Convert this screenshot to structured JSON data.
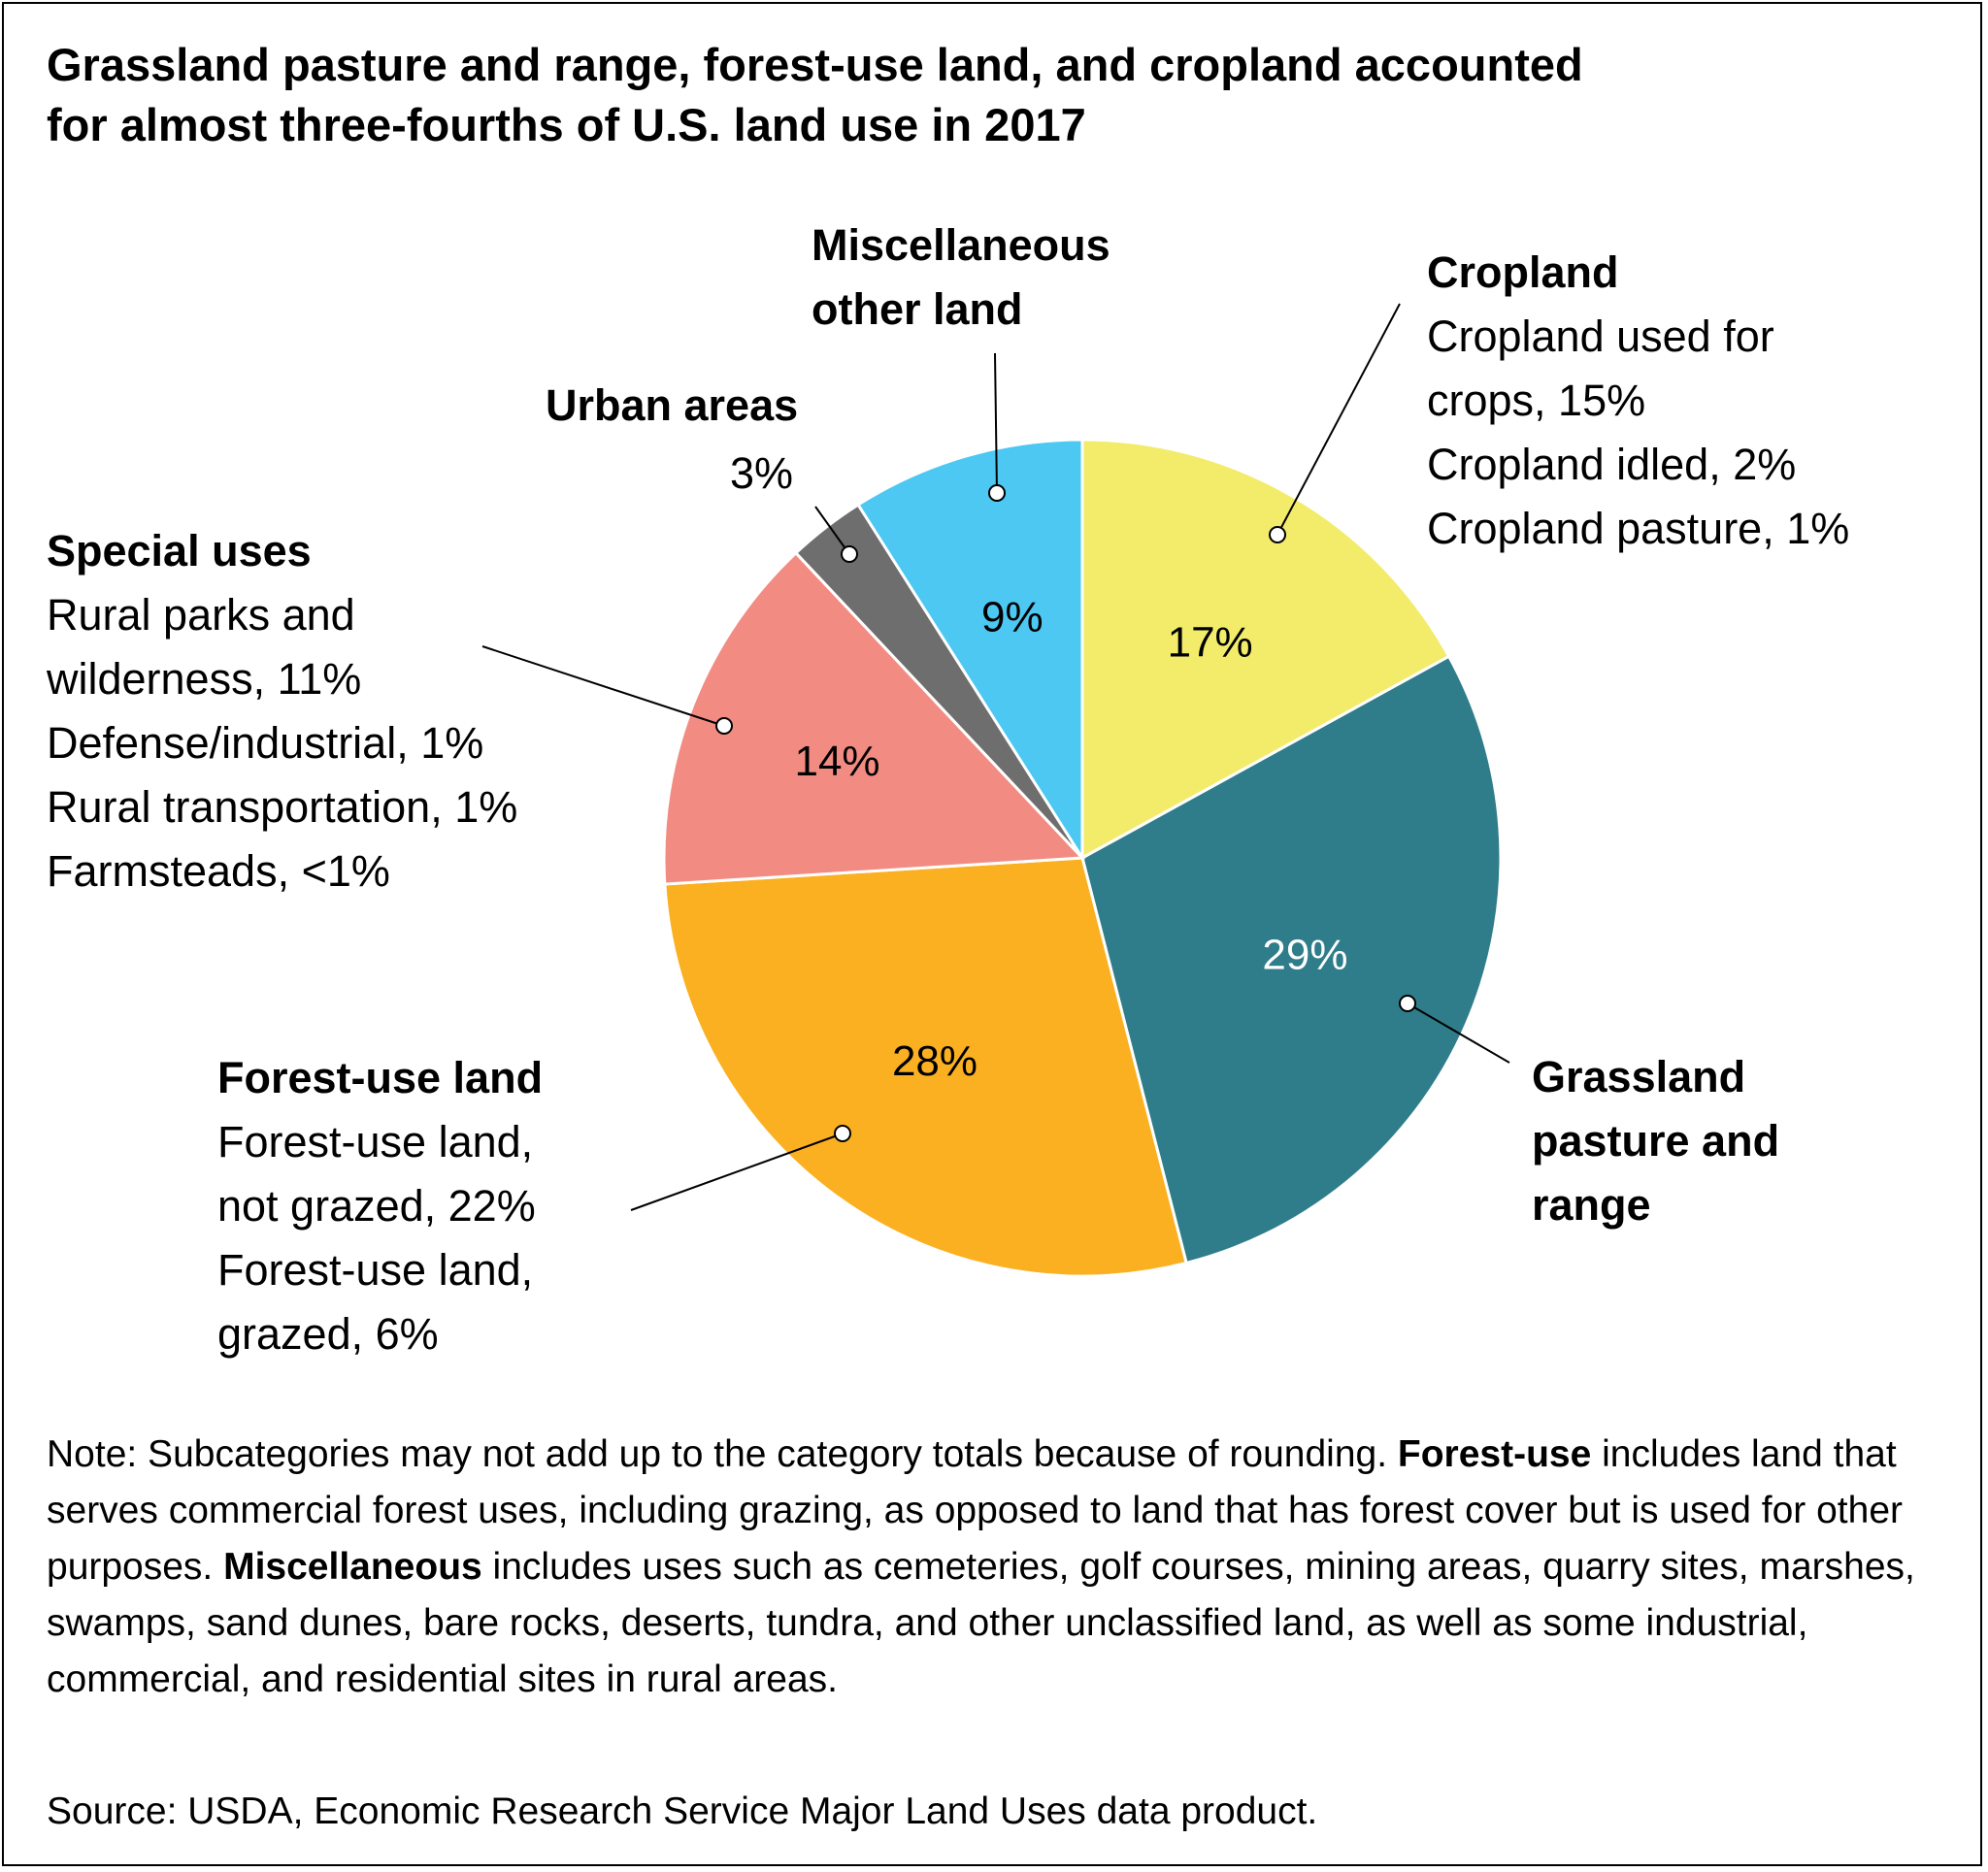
{
  "title_lines": [
    "Grassland pasture and range, forest-use land, and cropland accounted",
    " for almost three-fourths of U.S. land use in 2017"
  ],
  "chart_data": {
    "type": "pie",
    "slices": [
      {
        "name": "Cropland",
        "value": 17,
        "label": "17%",
        "color": "#f2ec6a",
        "label_color": "#000000"
      },
      {
        "name": "Grassland pasture and range",
        "value": 29,
        "label": "29%",
        "color": "#2f7d8a",
        "label_color": "#ffffff"
      },
      {
        "name": "Forest-use land",
        "value": 28,
        "label": "28%",
        "color": "#fbb021",
        "label_color": "#000000"
      },
      {
        "name": "Special uses",
        "value": 14,
        "label": "14%",
        "color": "#f28c82",
        "label_color": "#000000"
      },
      {
        "name": "Urban areas",
        "value": 3,
        "label": "",
        "color": "#6e6e6e",
        "label_color": "#000000"
      },
      {
        "name": "Miscellaneous other land",
        "value": 9,
        "label": "9%",
        "color": "#4cc8f2",
        "label_color": "#000000"
      }
    ]
  },
  "callouts": {
    "cropland": {
      "head": "Cropland",
      "lines": [
        "Cropland used for",
        "crops, 15%",
        "Cropland idled, 2%",
        "Cropland pasture, 1%"
      ]
    },
    "grassland": {
      "head_lines": [
        "Grassland",
        "pasture and",
        "range"
      ]
    },
    "forest": {
      "head": "Forest-use land",
      "lines": [
        "Forest-use land,",
        "not grazed, 22%",
        "Forest-use land,",
        "grazed, 6%"
      ]
    },
    "special": {
      "head": "Special uses",
      "lines": [
        "Rural parks and",
        "wilderness, 11%",
        "Defense/industrial, 1%",
        "Rural transportation, 1%",
        "Farmsteads, <1%"
      ]
    },
    "urban": {
      "head": "Urban areas",
      "value": "3%"
    },
    "misc": {
      "head_lines": [
        "Miscellaneous",
        "other land"
      ]
    }
  },
  "note": {
    "t1": "Note: Subcategories may not add up to the category totals because of rounding. ",
    "b1": "Forest-use",
    "t2": " includes land that serves commercial forest uses, including grazing, as opposed to land that has forest cover but is used for other purposes. ",
    "b2": "Miscellaneous",
    "t3": " includes uses such as cemeteries, golf courses, mining areas, quarry sites, marshes, swamps, sand dunes, bare rocks, deserts, tundra, and other unclassified land, as well as some industrial, commercial, and residential sites in rural areas."
  },
  "source": "Source: USDA, Economic Research Service Major Land Uses data product."
}
